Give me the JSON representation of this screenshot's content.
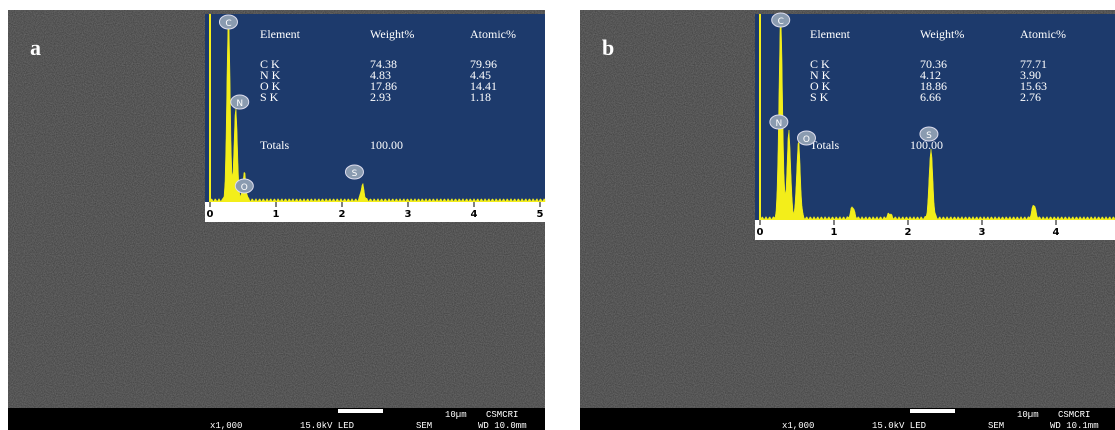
{
  "panels": [
    {
      "label": "a",
      "table": {
        "header": [
          "Element",
          "Weight%",
          "Atomic%"
        ],
        "rows": [
          [
            "C K",
            "74.38",
            "79.96"
          ],
          [
            "N K",
            "4.83",
            "4.45"
          ],
          [
            "O K",
            "17.86",
            "14.41"
          ],
          [
            "S K",
            "2.93",
            "1.18"
          ]
        ],
        "totals": [
          "Totals",
          "100.00"
        ]
      },
      "spectrum": {
        "xticks": [
          "0",
          "1",
          "2",
          "3",
          "4",
          "5"
        ],
        "peaks": [
          "C",
          "N",
          "O",
          "S"
        ]
      },
      "footer": {
        "magnification": "x1,000",
        "voltage": "15.0kV LED",
        "detector": "SEM",
        "scale": "10µm",
        "lab": "CSMCRI",
        "wd": "WD 10.0mm"
      }
    },
    {
      "label": "b",
      "table": {
        "header": [
          "Element",
          "Weight%",
          "Atomic%"
        ],
        "rows": [
          [
            "C K",
            "70.36",
            "77.71"
          ],
          [
            "N K",
            "4.12",
            "3.90"
          ],
          [
            "O K",
            "18.86",
            "15.63"
          ],
          [
            "S K",
            "6.66",
            "2.76"
          ]
        ],
        "totals": [
          "Totals",
          "100.00"
        ]
      },
      "spectrum": {
        "xticks": [
          "0",
          "1",
          "2",
          "3",
          "4"
        ],
        "peaks": [
          "C",
          "N",
          "O",
          "S"
        ]
      },
      "footer": {
        "magnification": "x1,000",
        "voltage": "15.0kV LED",
        "detector": "SEM",
        "scale": "10µm",
        "lab": "CSMCRI",
        "wd": "WD 10.1mm"
      }
    }
  ]
}
